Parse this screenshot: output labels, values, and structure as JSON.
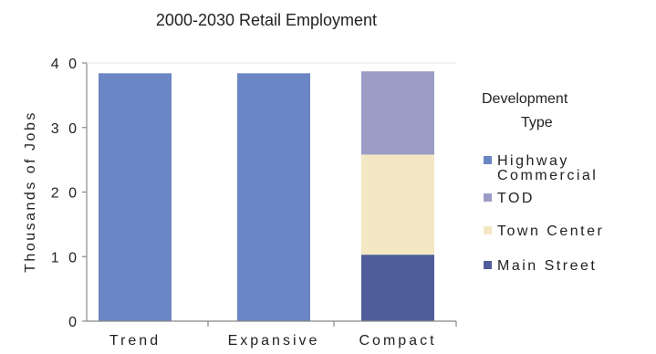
{
  "chart_data": {
    "type": "bar",
    "stacked": true,
    "title": "2000-2030 Retail Employment",
    "xlabel": "",
    "ylabel": "Thousands of Jobs",
    "ylim": [
      0,
      40
    ],
    "yticks": [
      {
        "value": 0,
        "label": "0"
      },
      {
        "value": 10,
        "label": "1 0"
      },
      {
        "value": 20,
        "label": "2 0"
      },
      {
        "value": 30,
        "label": "3 0"
      },
      {
        "value": 40,
        "label": "4 0"
      }
    ],
    "categories": [
      "Trend",
      "Expansive",
      "Compact"
    ],
    "series": [
      {
        "name": "Main Street",
        "color": "#4f5e9b",
        "values": [
          0,
          0,
          10.3
        ]
      },
      {
        "name": "Town Center",
        "color": "#f3e8c3",
        "values": [
          0,
          0,
          15.5
        ]
      },
      {
        "name": "TOD",
        "color": "#9b9dc6",
        "values": [
          0,
          0,
          12.9
        ]
      },
      {
        "name": "Highway Commercial",
        "color": "#6b86c4",
        "values": [
          38.4,
          38.4,
          0
        ]
      }
    ],
    "legend": {
      "title_line1": "Development",
      "title_line2": "Type",
      "position": "right",
      "items": [
        {
          "label_lines": [
            "Highway",
            "Commercial"
          ],
          "series": "Highway Commercial"
        },
        {
          "label_lines": [
            "TOD"
          ],
          "series": "TOD"
        },
        {
          "label_lines": [
            "Town Center"
          ],
          "series": "Town Center"
        },
        {
          "label_lines": [
            "Main Street"
          ],
          "series": "Main Street"
        }
      ]
    },
    "grid": false
  }
}
